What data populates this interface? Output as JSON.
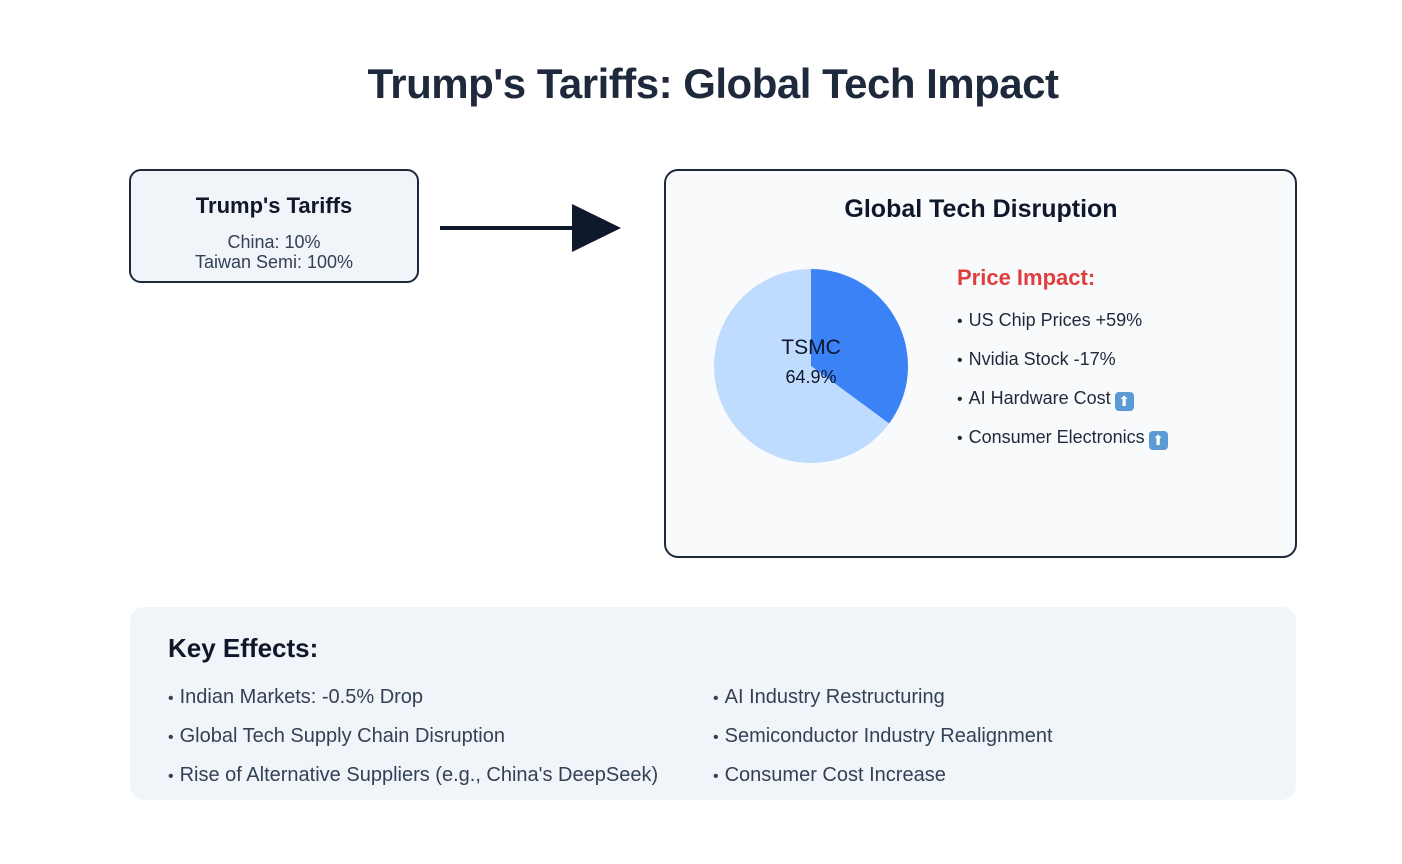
{
  "title": "Trump's Tariffs: Global Tech Impact",
  "tariffs": {
    "title": "Trump's Tariffs",
    "lines": [
      "China: 10%",
      "Taiwan Semi: 100%"
    ]
  },
  "disruption": {
    "title": "Global Tech Disruption",
    "price_title": "Price Impact:",
    "price_items": [
      {
        "text": "US Chip Prices +59%",
        "icon": ""
      },
      {
        "text": "Nvidia Stock -17%",
        "icon": ""
      },
      {
        "text": "AI Hardware Cost",
        "icon": "up-arrow-icon"
      },
      {
        "text": "Consumer Electronics",
        "icon": "up-arrow-icon"
      }
    ]
  },
  "chart_data": {
    "type": "pie",
    "slices": [
      {
        "label": "TSMC",
        "value": 64.9,
        "display": "64.9%",
        "color": "#bfdbfe",
        "labeled": true
      },
      {
        "label": "",
        "value": 35.1,
        "color": "#3b82f6",
        "labeled": false
      }
    ]
  },
  "effects": {
    "title": "Key Effects:",
    "left": [
      "Indian Markets: -0.5% Drop",
      "Global Tech Supply Chain Disruption",
      "Rise of Alternative Suppliers (e.g., China's DeepSeek)"
    ],
    "right": [
      "AI Industry Restructuring",
      "Semiconductor Industry Realignment",
      "Consumer Cost Increase"
    ]
  },
  "colors": {
    "dark": "#1e293b",
    "accent_red": "#e03e3e",
    "pie_light": "#bfdbfe",
    "pie_dark": "#3b82f6"
  }
}
